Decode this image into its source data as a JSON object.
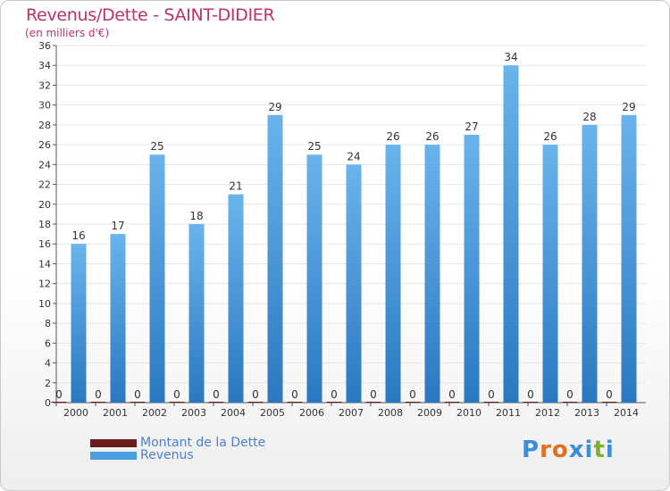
{
  "title": "Revenus/Dette - SAINT-DIDIER",
  "subtitle": "(en milliers d'€)",
  "colors": {
    "title": "#c0306a",
    "debt": "#6b1c1c",
    "revenue_light": "#6ab4ec",
    "revenue_dark": "#2a78c0",
    "axis": "#555555",
    "grid": "#e6e6e6",
    "legend_text": "#4a7fd4"
  },
  "legend": [
    {
      "label": "Montant de la Dette",
      "color": "#6b1c1c"
    },
    {
      "label": "Revenus",
      "color": "#4a9fe0"
    }
  ],
  "logo": {
    "letters": [
      "P",
      "r",
      "o",
      "x",
      "i",
      "t",
      "i"
    ],
    "colors": [
      "#3a8fd8",
      "#e07020",
      "#e07020",
      "#3a8fd8",
      "#3a8fd8",
      "#80b030",
      "#3a8fd8"
    ],
    "text": "Proxiti"
  },
  "chart_data": {
    "type": "bar",
    "title": "Revenus/Dette - SAINT-DIDIER",
    "subtitle": "(en milliers d'€)",
    "categories": [
      "2000",
      "2001",
      "2002",
      "2003",
      "2004",
      "2005",
      "2006",
      "2007",
      "2008",
      "2009",
      "2010",
      "2011",
      "2012",
      "2013",
      "2014"
    ],
    "series": [
      {
        "name": "Montant de la Dette",
        "values": [
          0,
          0,
          0,
          0,
          0,
          0,
          0,
          0,
          0,
          0,
          0,
          0,
          0,
          0,
          0
        ]
      },
      {
        "name": "Revenus",
        "values": [
          16,
          17,
          25,
          18,
          21,
          29,
          25,
          24,
          26,
          26,
          27,
          34,
          26,
          28,
          29
        ]
      }
    ],
    "ylim": [
      0,
      36
    ],
    "yticks": [
      0,
      2,
      4,
      6,
      8,
      10,
      12,
      14,
      16,
      18,
      20,
      22,
      24,
      26,
      28,
      30,
      32,
      34,
      36
    ],
    "grid": true,
    "legend_position": "bottom-left"
  }
}
